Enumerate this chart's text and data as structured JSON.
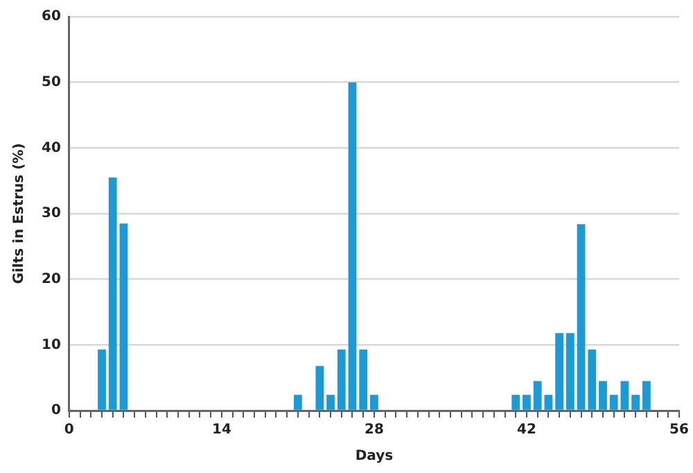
{
  "chart_data": {
    "type": "bar",
    "xlabel": "Days",
    "ylabel": "Gilts in Estrus (%)",
    "x": [
      3,
      4,
      5,
      21,
      23,
      24,
      25,
      26,
      27,
      28,
      41,
      42,
      43,
      44,
      45,
      46,
      47,
      48,
      49,
      50,
      51,
      52,
      53
    ],
    "series": [
      {
        "color": "#1b9ad6",
        "values": [
          9.3,
          35.5,
          28.5,
          2.4,
          6.8,
          2.4,
          9.3,
          50,
          9.3,
          2.4,
          2.4,
          2.4,
          4.5,
          2.4,
          11.8,
          11.8,
          28.4,
          9.3,
          4.5,
          2.4,
          4.5,
          2.4,
          4.5
        ]
      }
    ],
    "xlim": [
      0,
      56
    ],
    "xticks": [
      0,
      {
        "value": 1,
        "label": null
      },
      {
        "value": 2,
        "label": null
      },
      {
        "value": 3,
        "label": null
      },
      {
        "value": 4,
        "label": null
      },
      {
        "value": 5,
        "label": null
      },
      {
        "value": 6,
        "label": null
      },
      {
        "value": 7,
        "label": null
      },
      {
        "value": 8,
        "label": null
      },
      {
        "value": 9,
        "label": null
      },
      {
        "value": 10,
        "label": null
      },
      {
        "value": 11,
        "label": null
      },
      {
        "value": 12,
        "label": null
      },
      {
        "value": 13,
        "label": null
      },
      14,
      {
        "value": 15,
        "label": null
      },
      {
        "value": 16,
        "label": null
      },
      {
        "value": 17,
        "label": null
      },
      {
        "value": 18,
        "label": null
      },
      {
        "value": 19,
        "label": null
      },
      {
        "value": 20,
        "label": null
      },
      {
        "value": 21,
        "label": null
      },
      {
        "value": 22,
        "label": null
      },
      {
        "value": 23,
        "label": null
      },
      {
        "value": 24,
        "label": null
      },
      {
        "value": 25,
        "label": null
      },
      {
        "value": 26,
        "label": null
      },
      {
        "value": 27,
        "label": null
      },
      28,
      {
        "value": 29,
        "label": null
      },
      {
        "value": 30,
        "label": null
      },
      {
        "value": 31,
        "label": null
      },
      {
        "value": 32,
        "label": null
      },
      {
        "value": 33,
        "label": null
      },
      {
        "value": 34,
        "label": null
      },
      {
        "value": 35,
        "label": null
      },
      {
        "value": 36,
        "label": null
      },
      {
        "value": 37,
        "label": null
      },
      {
        "value": 38,
        "label": null
      },
      {
        "value": 39,
        "label": null
      },
      {
        "value": 40,
        "label": null
      },
      {
        "value": 41,
        "label": null
      },
      42,
      {
        "value": 43,
        "label": null
      },
      {
        "value": 44,
        "label": null
      },
      {
        "value": 45,
        "label": null
      },
      {
        "value": 46,
        "label": null
      },
      {
        "value": 47,
        "label": null
      },
      {
        "value": 48,
        "label": null
      },
      {
        "value": 49,
        "label": null
      },
      {
        "value": 50,
        "label": null
      },
      {
        "value": 51,
        "label": null
      },
      {
        "value": 52,
        "label": null
      },
      {
        "value": 53,
        "label": null
      },
      {
        "value": 54,
        "label": null
      },
      {
        "value": 55,
        "label": null
      },
      56
    ],
    "ylim": [
      0,
      60
    ],
    "yticks": [
      0,
      10,
      20,
      30,
      40,
      50,
      60
    ],
    "grid": "y"
  }
}
